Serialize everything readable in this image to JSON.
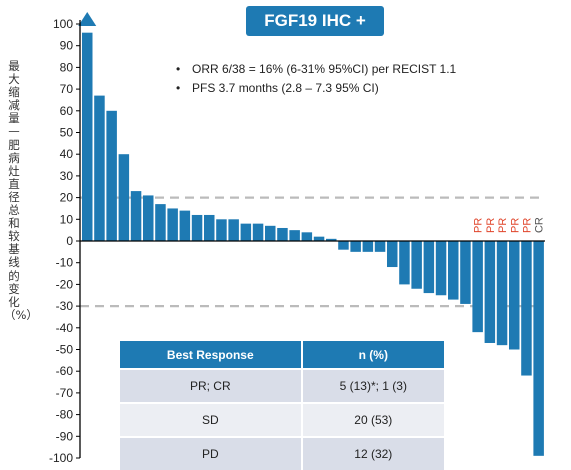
{
  "title": "FGF19 IHC +",
  "bullets": [
    "ORR 6/38 = 16% (6-31% 95%CI) per RECIST 1.1",
    "PFS 3.7 months (2.8 – 7.3 95% CI)"
  ],
  "y_axis_label": "最大缩减量—肥病灶直径总和较基线的变化（%）",
  "colors": {
    "bar": "#1e7ab3",
    "header": "#1e7ab3",
    "reference_line": "#bbbbbb",
    "response_label": "#e0452b",
    "cr_label": "#555555"
  },
  "table": {
    "headers": [
      "Best Response",
      "n (%)"
    ],
    "rows": [
      {
        "response": "PR; CR",
        "n": "5 (13)*; 1 (3)"
      },
      {
        "response": "SD",
        "n": "20 (53)"
      },
      {
        "response": "PD",
        "n": "12 (32)"
      }
    ]
  },
  "chart_data": {
    "type": "bar",
    "title": "FGF19 IHC +",
    "ylabel": "最大缩减量—肥病灶直径总和较基线的变化（%）",
    "ylim": [
      -100,
      100
    ],
    "yticks": [
      100,
      90,
      80,
      70,
      60,
      50,
      40,
      30,
      20,
      10,
      0,
      -10,
      -20,
      -30,
      -40,
      -50,
      -60,
      -70,
      -80,
      -90,
      -100
    ],
    "reference_lines": [
      20,
      -30
    ],
    "values": [
      100,
      67,
      60,
      40,
      23,
      21,
      17,
      15,
      14,
      12,
      12,
      10,
      10,
      8,
      8,
      7,
      6,
      5,
      4,
      2,
      1,
      -4,
      -5,
      -5,
      -5,
      -12,
      -20,
      -22,
      -24,
      -25,
      -27,
      -29,
      -42,
      -47,
      -48,
      -50,
      -62,
      -99
    ],
    "arrow_bar_index": 0,
    "response_labels": [
      {
        "bar_index": 32,
        "label": "PR"
      },
      {
        "bar_index": 33,
        "label": "PR"
      },
      {
        "bar_index": 34,
        "label": "PR"
      },
      {
        "bar_index": 35,
        "label": "PR"
      },
      {
        "bar_index": 36,
        "label": "PR"
      },
      {
        "bar_index": 37,
        "label": "CR"
      }
    ]
  }
}
